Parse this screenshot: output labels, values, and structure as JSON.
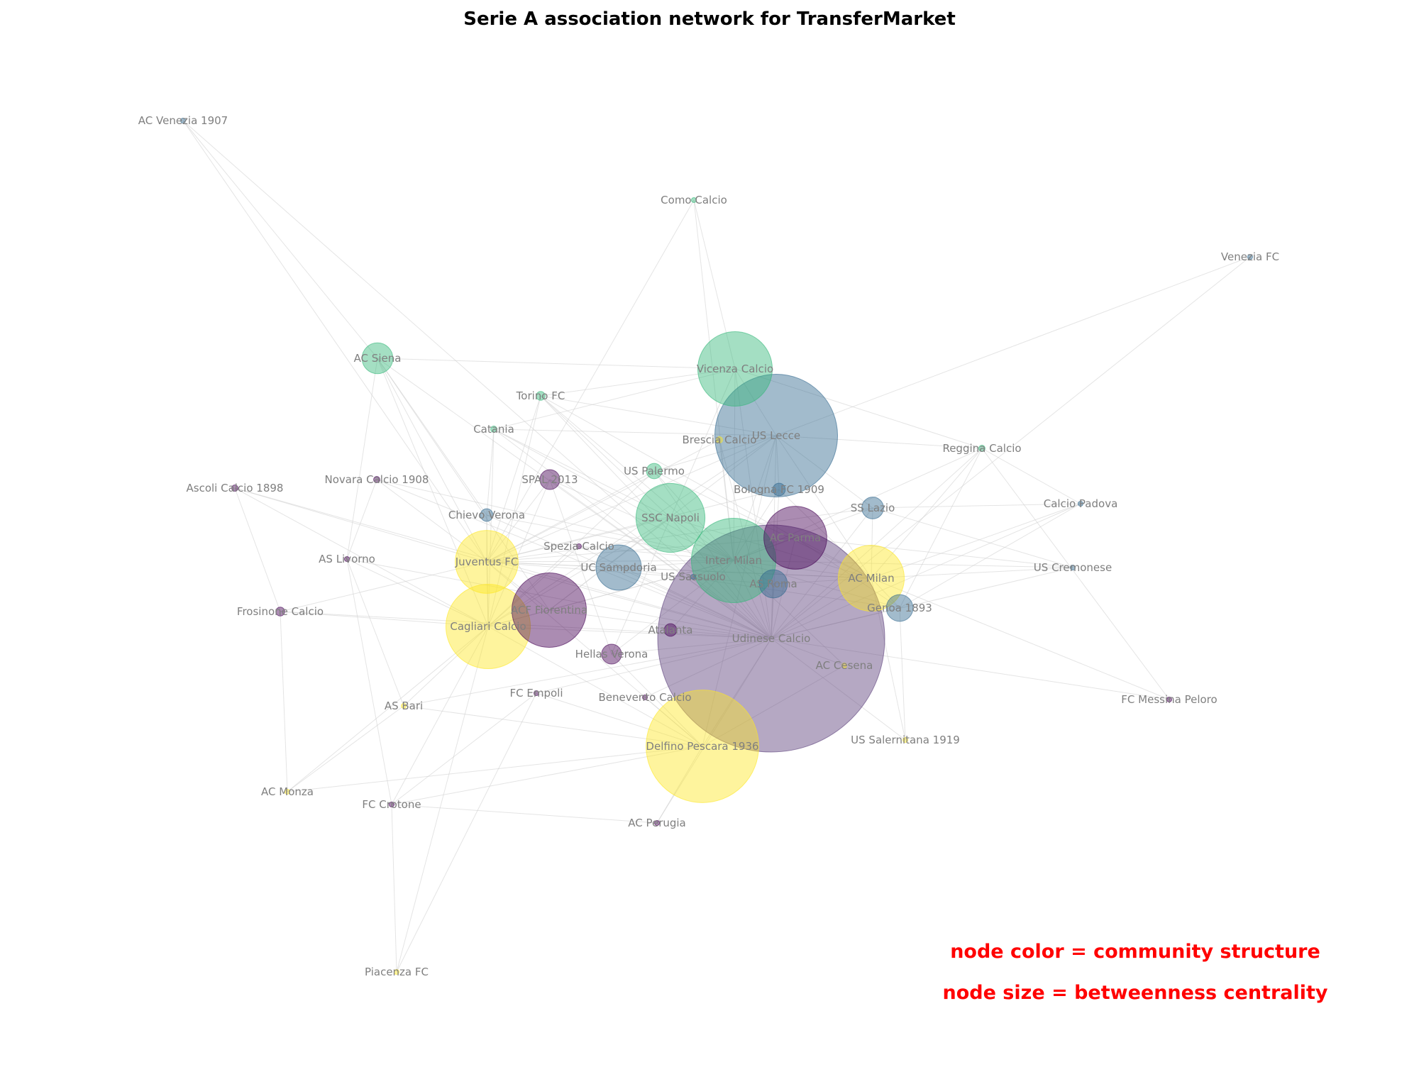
{
  "title": "Serie A association network for TransferMarket",
  "notes": {
    "color": "node color = community structure",
    "size": "node size = betweenness centrality"
  },
  "colors": {
    "edge": "#cfcfcf",
    "label": "#7f7f7f",
    "note": "#ff0000",
    "community": [
      "#440154",
      "#31688e",
      "#35b779",
      "#fde725",
      "#5a3d7a"
    ]
  },
  "nodes": [
    {
      "id": "AC Venezia 1907",
      "community": 1,
      "betweenness": 0.0
    },
    {
      "id": "Como Calcio",
      "community": 2,
      "betweenness": 0.0
    },
    {
      "id": "Venezia FC",
      "community": 1,
      "betweenness": 0.0
    },
    {
      "id": "AC Siena",
      "community": 2,
      "betweenness": 0.012
    },
    {
      "id": "Vicenza Calcio",
      "community": 2,
      "betweenness": 0.07
    },
    {
      "id": "Torino FC",
      "community": 2,
      "betweenness": 0.001
    },
    {
      "id": "US Lecce",
      "community": 1,
      "betweenness": 0.19
    },
    {
      "id": "Catania",
      "community": 2,
      "betweenness": 0.0005
    },
    {
      "id": "Brescia Calcio",
      "community": 3,
      "betweenness": 0.0005
    },
    {
      "id": "Reggina Calcio",
      "community": 2,
      "betweenness": 0.0005
    },
    {
      "id": "Ascoli Calcio 1898",
      "community": 0,
      "betweenness": 0.0005
    },
    {
      "id": "Novara Calcio 1908",
      "community": 0,
      "betweenness": 0.0005
    },
    {
      "id": "SPAL 2013",
      "community": 0,
      "betweenness": 0.005
    },
    {
      "id": "US Palermo",
      "community": 2,
      "betweenness": 0.003
    },
    {
      "id": "Bologna FC 1909",
      "community": 1,
      "betweenness": 0.002
    },
    {
      "id": "SS Lazio",
      "community": 1,
      "betweenness": 0.006
    },
    {
      "id": "Calcio Padova",
      "community": 1,
      "betweenness": 0.0
    },
    {
      "id": "Chievo Verona",
      "community": 1,
      "betweenness": 0.002
    },
    {
      "id": "SSC Napoli",
      "community": 2,
      "betweenness": 0.06
    },
    {
      "id": "AC Parma",
      "community": 0,
      "betweenness": 0.05
    },
    {
      "id": "AS Livorno",
      "community": 0,
      "betweenness": 0.0
    },
    {
      "id": "Juventus FC",
      "community": 3,
      "betweenness": 0.05
    },
    {
      "id": "Spezia Calcio",
      "community": 0,
      "betweenness": 0.0
    },
    {
      "id": "UC Sampdoria",
      "community": 1,
      "betweenness": 0.026
    },
    {
      "id": "Inter Milan",
      "community": 2,
      "betweenness": 0.09
    },
    {
      "id": "US Sassuolo",
      "community": 1,
      "betweenness": 0.0
    },
    {
      "id": "AS Roma",
      "community": 1,
      "betweenness": 0.01
    },
    {
      "id": "AC Milan",
      "community": 3,
      "betweenness": 0.055
    },
    {
      "id": "US Cremonese",
      "community": 1,
      "betweenness": 0.0
    },
    {
      "id": "Genoa 1893",
      "community": 1,
      "betweenness": 0.009
    },
    {
      "id": "Frosinone Calcio",
      "community": 0,
      "betweenness": 0.001
    },
    {
      "id": "ACF Fiorentina",
      "community": 0,
      "betweenness": 0.07
    },
    {
      "id": "Cagliari Calcio",
      "community": 3,
      "betweenness": 0.09
    },
    {
      "id": "Atalanta",
      "community": 0,
      "betweenness": 0.002
    },
    {
      "id": "Udinese Calcio",
      "community": 4,
      "betweenness": 0.65
    },
    {
      "id": "Hellas Verona",
      "community": 0,
      "betweenness": 0.005
    },
    {
      "id": "AC Cesena",
      "community": 3,
      "betweenness": 0.0
    },
    {
      "id": "AS Bari",
      "community": 3,
      "betweenness": 0.0
    },
    {
      "id": "FC Empoli",
      "community": 0,
      "betweenness": 0.0
    },
    {
      "id": "Benevento Calcio",
      "community": 0,
      "betweenness": 0.0
    },
    {
      "id": "FC Messina Peloro",
      "community": 0,
      "betweenness": 0.0
    },
    {
      "id": "Delfino Pescara 1936",
      "community": 3,
      "betweenness": 0.16
    },
    {
      "id": "US Salernitana 1919",
      "community": 3,
      "betweenness": 0.0
    },
    {
      "id": "AC Monza",
      "community": 3,
      "betweenness": 0.0
    },
    {
      "id": "FC Crotone",
      "community": 0,
      "betweenness": 0.0
    },
    {
      "id": "AC Perugia",
      "community": 0,
      "betweenness": 0.0
    },
    {
      "id": "Piacenza FC",
      "community": 3,
      "betweenness": 0.0
    }
  ],
  "edges": [
    [
      "AC Venezia 1907",
      "AC Siena"
    ],
    [
      "AC Venezia 1907",
      "Juventus FC"
    ],
    [
      "AC Venezia 1907",
      "Udinese Calcio"
    ],
    [
      "Como Calcio",
      "Inter Milan"
    ],
    [
      "Como Calcio",
      "Vicenza Calcio"
    ],
    [
      "Como Calcio",
      "Juventus FC"
    ],
    [
      "Venezia FC",
      "US Lecce"
    ],
    [
      "Venezia FC",
      "Udinese Calcio"
    ],
    [
      "AC Siena",
      "Vicenza Calcio"
    ],
    [
      "AC Siena",
      "Juventus FC"
    ],
    [
      "AC Siena",
      "Cagliari Calcio"
    ],
    [
      "AC Siena",
      "ACF Fiorentina"
    ],
    [
      "AC Siena",
      "Udinese Calcio"
    ],
    [
      "AC Siena",
      "AS Livorno"
    ],
    [
      "AC Siena",
      "Chievo Verona"
    ],
    [
      "Vicenza Calcio",
      "US Lecce"
    ],
    [
      "Vicenza Calcio",
      "Inter Milan"
    ],
    [
      "Vicenza Calcio",
      "SSC Napoli"
    ],
    [
      "Vicenza Calcio",
      "Udinese Calcio"
    ],
    [
      "Vicenza Calcio",
      "Torino FC"
    ],
    [
      "Vicenza Calcio",
      "Reggina Calcio"
    ],
    [
      "Vicenza Calcio",
      "Catania"
    ],
    [
      "Torino FC",
      "US Lecce"
    ],
    [
      "Torino FC",
      "Udinese Calcio"
    ],
    [
      "Torino FC",
      "Juventus FC"
    ],
    [
      "Torino FC",
      "Inter Milan"
    ],
    [
      "Torino FC",
      "Cagliari Calcio"
    ],
    [
      "Torino FC",
      "SSC Napoli"
    ],
    [
      "Torino FC",
      "AC Parma"
    ],
    [
      "US Lecce",
      "Udinese Calcio"
    ],
    [
      "US Lecce",
      "Inter Milan"
    ],
    [
      "US Lecce",
      "AC Milan"
    ],
    [
      "US Lecce",
      "Reggina Calcio"
    ],
    [
      "US Lecce",
      "Juventus FC"
    ],
    [
      "US Lecce",
      "ACF Fiorentina"
    ],
    [
      "US Lecce",
      "Catania"
    ],
    [
      "US Lecce",
      "SS Lazio"
    ],
    [
      "US Lecce",
      "Bologna FC 1909"
    ],
    [
      "US Lecce",
      "Cagliari Calcio"
    ],
    [
      "US Lecce",
      "Delfino Pescara 1936"
    ],
    [
      "US Lecce",
      "US Palermo"
    ],
    [
      "Catania",
      "Udinese Calcio"
    ],
    [
      "Catania",
      "Cagliari Calcio"
    ],
    [
      "Catania",
      "Inter Milan"
    ],
    [
      "Catania",
      "SSC Napoli"
    ],
    [
      "Catania",
      "Chievo Verona"
    ],
    [
      "Brescia Calcio",
      "Udinese Calcio"
    ],
    [
      "Brescia Calcio",
      "Inter Milan"
    ],
    [
      "Brescia Calcio",
      "Juventus FC"
    ],
    [
      "Reggina Calcio",
      "Udinese Calcio"
    ],
    [
      "Reggina Calcio",
      "AC Milan"
    ],
    [
      "Reggina Calcio",
      "Inter Milan"
    ],
    [
      "Reggina Calcio",
      "Calcio Padova"
    ],
    [
      "Reggina Calcio",
      "FC Messina Peloro"
    ],
    [
      "Reggina Calcio",
      "Genoa 1893"
    ],
    [
      "Ascoli Calcio 1898",
      "Cagliari Calcio"
    ],
    [
      "Ascoli Calcio 1898",
      "Udinese Calcio"
    ],
    [
      "Ascoli Calcio 1898",
      "Frosinone Calcio"
    ],
    [
      "Ascoli Calcio 1898",
      "Juventus FC"
    ],
    [
      "Novara Calcio 1908",
      "Udinese Calcio"
    ],
    [
      "Novara Calcio 1908",
      "Inter Milan"
    ],
    [
      "Novara Calcio 1908",
      "Juventus FC"
    ],
    [
      "Novara Calcio 1908",
      "AS Livorno"
    ],
    [
      "SPAL 2013",
      "Udinese Calcio"
    ],
    [
      "SPAL 2013",
      "Inter Milan"
    ],
    [
      "SPAL 2013",
      "Juventus FC"
    ],
    [
      "SPAL 2013",
      "Cagliari Calcio"
    ],
    [
      "SPAL 2013",
      "Hellas Verona"
    ],
    [
      "US Palermo",
      "Udinese Calcio"
    ],
    [
      "US Palermo",
      "Inter Milan"
    ],
    [
      "US Palermo",
      "Juventus FC"
    ],
    [
      "US Palermo",
      "AC Milan"
    ],
    [
      "US Palermo",
      "Cagliari Calcio"
    ],
    [
      "Bologna FC 1909",
      "Udinese Calcio"
    ],
    [
      "Bologna FC 1909",
      "Inter Milan"
    ],
    [
      "Bologna FC 1909",
      "Juventus FC"
    ],
    [
      "Bologna FC 1909",
      "AC Milan"
    ],
    [
      "SS Lazio",
      "Udinese Calcio"
    ],
    [
      "SS Lazio",
      "Inter Milan"
    ],
    [
      "SS Lazio",
      "AC Milan"
    ],
    [
      "SS Lazio",
      "Juventus FC"
    ],
    [
      "SS Lazio",
      "Calcio Padova"
    ],
    [
      "SS Lazio",
      "US Cremonese"
    ],
    [
      "Calcio Padova",
      "Udinese Calcio"
    ],
    [
      "Calcio Padova",
      "AC Milan"
    ],
    [
      "Calcio Padova",
      "Genoa 1893"
    ],
    [
      "Chievo Verona",
      "Udinese Calcio"
    ],
    [
      "Chievo Verona",
      "Inter Milan"
    ],
    [
      "Chievo Verona",
      "Juventus FC"
    ],
    [
      "Chievo Verona",
      "Cagliari Calcio"
    ],
    [
      "SSC Napoli",
      "Udinese Calcio"
    ],
    [
      "SSC Napoli",
      "Inter Milan"
    ],
    [
      "SSC Napoli",
      "Juventus FC"
    ],
    [
      "SSC Napoli",
      "AC Milan"
    ],
    [
      "SSC Napoli",
      "Cagliari Calcio"
    ],
    [
      "SSC Napoli",
      "ACF Fiorentina"
    ],
    [
      "SSC Napoli",
      "Hellas Verona"
    ],
    [
      "AC Parma",
      "Udinese Calcio"
    ],
    [
      "AC Parma",
      "Inter Milan"
    ],
    [
      "AC Parma",
      "Juventus FC"
    ],
    [
      "AC Parma",
      "AC Milan"
    ],
    [
      "AC Parma",
      "US Cremonese"
    ],
    [
      "AC Parma",
      "Genoa 1893"
    ],
    [
      "AS Livorno",
      "Udinese Calcio"
    ],
    [
      "AS Livorno",
      "Cagliari Calcio"
    ],
    [
      "AS Livorno",
      "FC Crotone"
    ],
    [
      "AS Livorno",
      "AS Bari"
    ],
    [
      "Juventus FC",
      "Udinese Calcio"
    ],
    [
      "Juventus FC",
      "Inter Milan"
    ],
    [
      "Juventus FC",
      "AC Milan"
    ],
    [
      "Juventus FC",
      "Cagliari Calcio"
    ],
    [
      "Juventus FC",
      "Frosinone Calcio"
    ],
    [
      "Juventus FC",
      "UC Sampdoria"
    ],
    [
      "Spezia Calcio",
      "Udinese Calcio"
    ],
    [
      "Spezia Calcio",
      "Inter Milan"
    ],
    [
      "Spezia Calcio",
      "Cagliari Calcio"
    ],
    [
      "UC Sampdoria",
      "Udinese Calcio"
    ],
    [
      "UC Sampdoria",
      "Inter Milan"
    ],
    [
      "UC Sampdoria",
      "AC Milan"
    ],
    [
      "UC Sampdoria",
      "Genoa 1893"
    ],
    [
      "Inter Milan",
      "Udinese Calcio"
    ],
    [
      "Inter Milan",
      "AC Milan"
    ],
    [
      "Inter Milan",
      "AS Roma"
    ],
    [
      "Inter Milan",
      "Genoa 1893"
    ],
    [
      "Inter Milan",
      "US Cremonese"
    ],
    [
      "Inter Milan",
      "Cagliari Calcio"
    ],
    [
      "Inter Milan",
      "ACF Fiorentina"
    ],
    [
      "US Sassuolo",
      "Udinese Calcio"
    ],
    [
      "US Sassuolo",
      "Inter Milan"
    ],
    [
      "AS Roma",
      "Udinese Calcio"
    ],
    [
      "AS Roma",
      "AC Milan"
    ],
    [
      "AS Roma",
      "Juventus FC"
    ],
    [
      "AC Milan",
      "Udinese Calcio"
    ],
    [
      "AC Milan",
      "US Cremonese"
    ],
    [
      "AC Milan",
      "Genoa 1893"
    ],
    [
      "AC Milan",
      "US Salernitana 1919"
    ],
    [
      "AC Milan",
      "FC Messina Peloro"
    ],
    [
      "Genoa 1893",
      "Udinese Calcio"
    ],
    [
      "Genoa 1893",
      "US Salernitana 1919"
    ],
    [
      "Frosinone Calcio",
      "Udinese Calcio"
    ],
    [
      "Frosinone Calcio",
      "Cagliari Calcio"
    ],
    [
      "Frosinone Calcio",
      "AC Monza"
    ],
    [
      "ACF Fiorentina",
      "Udinese Calcio"
    ],
    [
      "ACF Fiorentina",
      "Cagliari Calcio"
    ],
    [
      "ACF Fiorentina",
      "Juventus FC"
    ],
    [
      "Cagliari Calcio",
      "Udinese Calcio"
    ],
    [
      "Cagliari Calcio",
      "AS Bari"
    ],
    [
      "Cagliari Calcio",
      "FC Crotone"
    ],
    [
      "Cagliari Calcio",
      "Delfino Pescara 1936"
    ],
    [
      "Atalanta",
      "Udinese Calcio"
    ],
    [
      "Atalanta",
      "Inter Milan"
    ],
    [
      "Udinese Calcio",
      "Hellas Verona"
    ],
    [
      "Udinese Calcio",
      "AC Cesena"
    ],
    [
      "Udinese Calcio",
      "FC Empoli"
    ],
    [
      "Udinese Calcio",
      "Benevento Calcio"
    ],
    [
      "Udinese Calcio",
      "Delfino Pescara 1936"
    ],
    [
      "Udinese Calcio",
      "US Salernitana 1919"
    ],
    [
      "Udinese Calcio",
      "FC Messina Peloro"
    ],
    [
      "Udinese Calcio",
      "AS Bari"
    ],
    [
      "Udinese Calcio",
      "AC Perugia"
    ],
    [
      "Udinese Calcio",
      "US Cremonese"
    ],
    [
      "Hellas Verona",
      "Delfino Pescara 1936"
    ],
    [
      "Hellas Verona",
      "Inter Milan"
    ],
    [
      "AC Cesena",
      "Delfino Pescara 1936"
    ],
    [
      "AC Cesena",
      "Inter Milan"
    ],
    [
      "AS Bari",
      "AC Monza"
    ],
    [
      "AS Bari",
      "Delfino Pescara 1936"
    ],
    [
      "FC Empoli",
      "Delfino Pescara 1936"
    ],
    [
      "FC Empoli",
      "Piacenza FC"
    ],
    [
      "FC Empoli",
      "FC Crotone"
    ],
    [
      "Benevento Calcio",
      "Delfino Pescara 1936"
    ],
    [
      "Delfino Pescara 1936",
      "AC Perugia"
    ],
    [
      "Delfino Pescara 1936",
      "FC Crotone"
    ],
    [
      "Delfino Pescara 1936",
      "AC Monza"
    ],
    [
      "Delfino Pescara 1936",
      "Juventus FC"
    ],
    [
      "FC Crotone",
      "AC Perugia"
    ],
    [
      "FC Crotone",
      "Piacenza FC"
    ],
    [
      "AC Monza",
      "Cagliari Calcio"
    ],
    [
      "Piacenza FC",
      "Cagliari Calcio"
    ]
  ]
}
